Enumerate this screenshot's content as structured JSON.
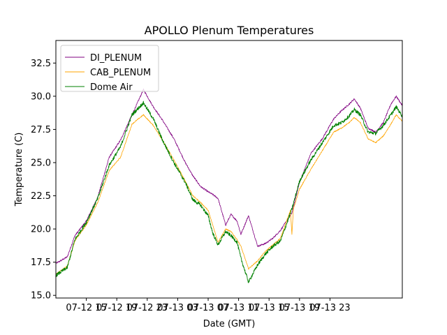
{
  "chart_data": {
    "type": "line",
    "title": "APOLLO Plenum Temperatures",
    "xlabel": "Date (GMT)",
    "ylabel": "Temperature (C)",
    "xlim_hours": [
      0,
      45.5
    ],
    "ylim": [
      14.8,
      34.2
    ],
    "grid": false,
    "legend_position": "top-left",
    "x_ticks": [
      {
        "hour": 4,
        "label": "07-12 15"
      },
      {
        "hour": 8,
        "label": "07-12 19"
      },
      {
        "hour": 12,
        "label": "07-12 23"
      },
      {
        "hour": 16,
        "label": "07-13 03"
      },
      {
        "hour": 20,
        "label": "07-13 07"
      },
      {
        "hour": 24,
        "label": "07-13 11"
      },
      {
        "hour": 28,
        "label": "07-13 15"
      },
      {
        "hour": 32,
        "label": "07-13 19"
      },
      {
        "hour": 36,
        "label": "07-13 23"
      }
    ],
    "y_ticks": [
      {
        "value": 15.0,
        "label": "15.0"
      },
      {
        "value": 17.5,
        "label": "17.5"
      },
      {
        "value": 20.0,
        "label": "20.0"
      },
      {
        "value": 22.5,
        "label": "22.5"
      },
      {
        "value": 25.0,
        "label": "25.0"
      },
      {
        "value": 27.5,
        "label": "27.5"
      },
      {
        "value": 30.0,
        "label": "30.0"
      },
      {
        "value": 32.5,
        "label": "32.5"
      }
    ],
    "series": [
      {
        "name": "DI_PLENUM",
        "color": "#800080",
        "hours": [
          0,
          1.5,
          2.5,
          4,
          5.5,
          7,
          8.5,
          10,
          11.5,
          12.8,
          14,
          15.5,
          17,
          18,
          19,
          20,
          20.6,
          21.3,
          22.3,
          23,
          23.8,
          24.3,
          25.3,
          26.5,
          27.5,
          28.5,
          29.5,
          31,
          32,
          33.5,
          35,
          36.5,
          37.5,
          38.5,
          39.2,
          40,
          41,
          42,
          43,
          44,
          44.7,
          45.5
        ],
        "values": [
          17.4,
          17.9,
          19.5,
          20.6,
          22.4,
          25.4,
          26.7,
          28.6,
          30.5,
          29.2,
          28.2,
          26.8,
          25.0,
          24.0,
          23.2,
          22.8,
          22.6,
          22.3,
          20.3,
          21.1,
          20.6,
          19.6,
          21.0,
          18.7,
          18.9,
          19.3,
          19.9,
          21.2,
          23.5,
          25.7,
          26.8,
          28.3,
          28.9,
          29.4,
          29.8,
          29.1,
          27.6,
          27.3,
          28.0,
          29.4,
          30.0,
          29.3
        ]
      },
      {
        "name": "CAB_PLENUM",
        "color": "#ffa500",
        "hours": [
          0,
          1.5,
          2.5,
          4,
          5.5,
          7,
          8.5,
          10,
          11.5,
          12.8,
          14,
          15.5,
          17,
          18,
          19,
          20,
          20.6,
          21.3,
          22.3,
          23,
          23.8,
          24.3,
          25.3,
          26.5,
          27.5,
          28.5,
          29.5,
          30.8,
          31,
          31.2,
          32,
          33.5,
          35,
          36.5,
          37.5,
          38.5,
          39.2,
          40,
          41,
          42,
          43,
          44,
          44.7,
          45.5
        ],
        "values": [
          16.6,
          17.2,
          19.1,
          20.3,
          22.0,
          24.4,
          25.4,
          27.9,
          28.6,
          27.8,
          26.7,
          25.2,
          23.6,
          22.5,
          22.0,
          21.4,
          20.3,
          19.0,
          20.0,
          19.8,
          19.2,
          18.7,
          17.0,
          17.6,
          18.3,
          18.8,
          19.3,
          21.4,
          19.6,
          21.5,
          23.0,
          24.5,
          25.9,
          27.3,
          27.6,
          28.0,
          28.4,
          28.0,
          26.8,
          26.5,
          27.0,
          27.9,
          28.6,
          28.1
        ]
      },
      {
        "name": "Dome Air",
        "color": "#008000",
        "hours": [
          0,
          1.5,
          2.5,
          4,
          5.5,
          7,
          8.5,
          10,
          11.5,
          12.8,
          14,
          15.5,
          17,
          18,
          19,
          20,
          20.6,
          21.3,
          22.3,
          23,
          23.8,
          24.3,
          25.3,
          26.5,
          27.5,
          28.5,
          29.5,
          31,
          32,
          33.5,
          35,
          36.5,
          37.5,
          38.5,
          39.2,
          40,
          41,
          42,
          43,
          44,
          44.7,
          45.5
        ],
        "values": [
          16.5,
          17.1,
          19.2,
          20.5,
          22.3,
          24.8,
          26.2,
          28.6,
          29.5,
          28.3,
          26.7,
          25.0,
          23.5,
          22.2,
          21.8,
          21.0,
          19.7,
          18.8,
          19.8,
          19.5,
          19.0,
          17.8,
          16.0,
          17.3,
          18.1,
          18.7,
          19.1,
          21.5,
          23.6,
          25.2,
          26.5,
          27.8,
          28.0,
          28.5,
          29.0,
          28.6,
          27.3,
          27.2,
          27.8,
          28.6,
          29.2,
          28.5
        ]
      }
    ]
  }
}
